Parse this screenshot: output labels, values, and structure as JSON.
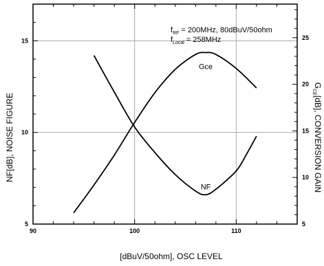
{
  "chart_data": {
    "type": "line",
    "x_axis": {
      "label": "[dBuV/50ohm], OSC LEVEL",
      "lim": [
        90,
        116
      ],
      "ticks": [
        90,
        100,
        110
      ],
      "minor_step": 2
    },
    "y_left": {
      "label": "NF[dB], NOISE FIGURE",
      "lim": [
        5,
        17
      ],
      "ticks": [
        5,
        10,
        15
      ],
      "minor_step": 1
    },
    "y_right": {
      "label_pre": "G",
      "label_sub": "CE",
      "label_post": "[dB], CONVERSION GAIN",
      "lim": [
        5,
        28.6
      ],
      "ticks": [
        5,
        10,
        15,
        20,
        25
      ],
      "minor_step": 1
    },
    "grid": true,
    "annotation": {
      "line1_pre": "f",
      "line1_sub": "RF",
      "line1_post": " = 200MHz, 80dBuV/50ohm",
      "line2_pre": "f",
      "line2_sub": "Local",
      "line2_post": " = 258MHz"
    },
    "series": [
      {
        "name": "Gce",
        "axis": "right",
        "x": [
          94,
          96,
          98,
          100,
          102,
          104,
          106,
          107,
          108,
          110,
          112
        ],
        "y": [
          6.2,
          9.2,
          12.4,
          15.9,
          19.1,
          21.6,
          23.2,
          23.4,
          23.2,
          21.7,
          19.6
        ]
      },
      {
        "name": "NF",
        "axis": "left",
        "x": [
          96,
          98,
          100,
          102,
          104,
          106,
          107,
          108,
          110,
          111,
          112
        ],
        "y": [
          14.2,
          12.2,
          10.3,
          8.9,
          7.7,
          6.8,
          6.6,
          6.9,
          7.9,
          8.8,
          9.8
        ]
      }
    ]
  }
}
